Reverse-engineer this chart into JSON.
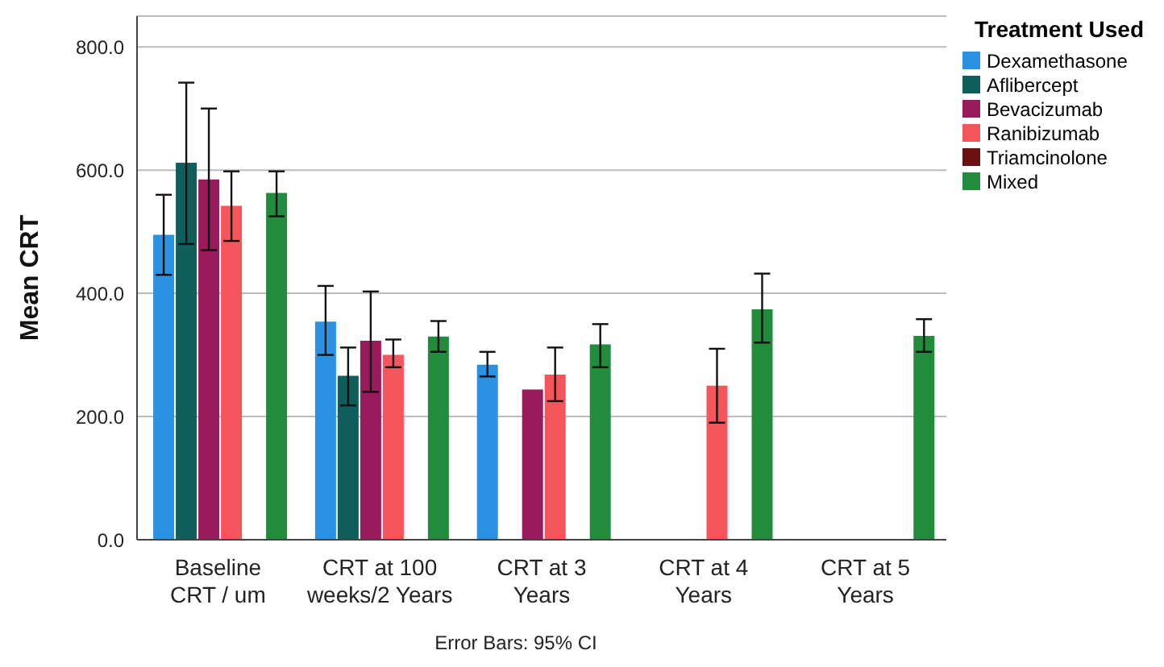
{
  "chart_data": {
    "type": "bar",
    "ylabel": "Mean CRT",
    "legend_title": "Treatment Used",
    "legend": "top right",
    "grid": "y",
    "categories": [
      "Baseline\nCRT / um",
      "CRT at 100\nweeks/2 Years",
      "CRT at 3\nYears",
      "CRT at 4\nYears",
      "CRT at 5\nYears"
    ],
    "ylim": [
      0,
      850
    ],
    "yticks": [
      {
        "value": 0,
        "label": "0.0"
      },
      {
        "value": 200,
        "label": "200.0"
      },
      {
        "value": 400,
        "label": "400.0"
      },
      {
        "value": 600,
        "label": "600.0"
      },
      {
        "value": 800,
        "label": "800.0"
      }
    ],
    "series": [
      {
        "name": "Dexamethasone",
        "color": "#2a91e3",
        "values": [
          495,
          354,
          284,
          null,
          null
        ],
        "errors": [
          [
            430,
            560
          ],
          [
            300,
            412
          ],
          [
            265,
            305
          ],
          null,
          null
        ]
      },
      {
        "name": "Aflibercept",
        "color": "#0f5e5b",
        "values": [
          612,
          266,
          null,
          null,
          null
        ],
        "errors": [
          [
            480,
            742
          ],
          [
            218,
            312
          ],
          null,
          null,
          null
        ]
      },
      {
        "name": "Bevacizumab",
        "color": "#9a1b5b",
        "values": [
          585,
          323,
          244,
          null,
          null
        ],
        "errors": [
          [
            470,
            700
          ],
          [
            240,
            403
          ],
          null,
          null,
          null
        ]
      },
      {
        "name": "Ranibizumab",
        "color": "#f5565c",
        "values": [
          542,
          300,
          268,
          250,
          null
        ],
        "errors": [
          [
            485,
            598
          ],
          [
            280,
            325
          ],
          [
            225,
            312
          ],
          [
            190,
            310
          ],
          null
        ]
      },
      {
        "name": "Triamcinolone",
        "color": "#6a1010",
        "values": [
          null,
          null,
          null,
          null,
          null
        ]
      },
      {
        "name": "Mixed",
        "color": "#228b3c",
        "values": [
          563,
          330,
          317,
          374,
          331
        ],
        "errors": [
          [
            525,
            598
          ],
          [
            305,
            355
          ],
          [
            280,
            350
          ],
          [
            320,
            432
          ],
          [
            305,
            358
          ]
        ]
      }
    ],
    "annotations": [
      "Error Bars: 95% CI"
    ]
  }
}
